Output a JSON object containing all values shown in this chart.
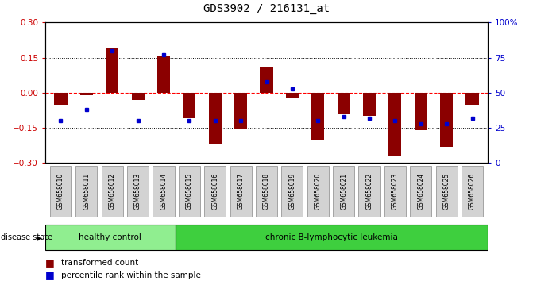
{
  "title": "GDS3902 / 216131_at",
  "samples": [
    "GSM658010",
    "GSM658011",
    "GSM658012",
    "GSM658013",
    "GSM658014",
    "GSM658015",
    "GSM658016",
    "GSM658017",
    "GSM658018",
    "GSM658019",
    "GSM658020",
    "GSM658021",
    "GSM658022",
    "GSM658023",
    "GSM658024",
    "GSM658025",
    "GSM658026"
  ],
  "red_bars": [
    -0.05,
    -0.01,
    0.19,
    -0.03,
    0.16,
    -0.11,
    -0.22,
    -0.155,
    0.11,
    -0.02,
    -0.2,
    -0.09,
    -0.1,
    -0.27,
    -0.16,
    -0.23,
    -0.05
  ],
  "blue_dots": [
    30,
    38,
    80,
    30,
    77,
    30,
    30,
    30,
    58,
    53,
    30,
    33,
    32,
    30,
    28,
    28,
    32
  ],
  "ylim_left": [
    -0.3,
    0.3
  ],
  "ylim_right": [
    0,
    100
  ],
  "yticks_left": [
    -0.3,
    -0.15,
    0.0,
    0.15,
    0.3
  ],
  "yticks_right": [
    0,
    25,
    50,
    75,
    100
  ],
  "ytick_labels_right": [
    "0",
    "25",
    "50",
    "75",
    "100%"
  ],
  "groups": [
    {
      "label": "healthy control",
      "start": 0,
      "end": 5,
      "color": "#90ee90"
    },
    {
      "label": "chronic B-lymphocytic leukemia",
      "start": 5,
      "end": 17,
      "color": "#3ecf3e"
    }
  ],
  "bar_color": "#8B0000",
  "dot_color": "#0000CD",
  "bar_width": 0.5,
  "legend_labels": [
    "transformed count",
    "percentile rank within the sample"
  ],
  "disease_label": "disease state",
  "left_tick_color": "#cc0000",
  "right_tick_color": "#0000CD"
}
